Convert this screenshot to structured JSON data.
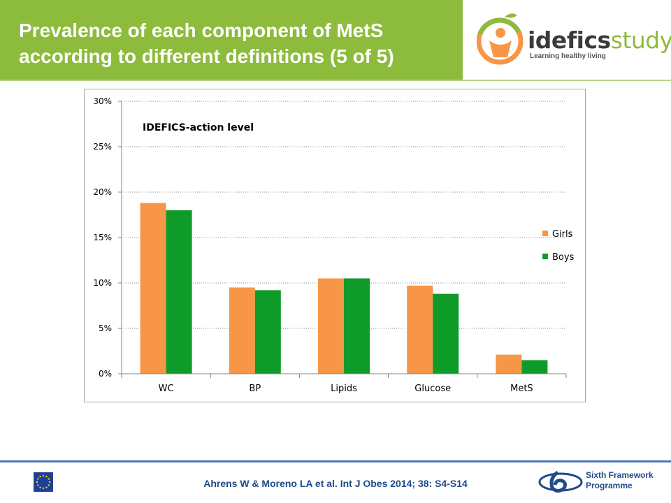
{
  "slide": {
    "title_line1": "Prevalence of each component of MetS",
    "title_line2": "according to different definitions (5 of 5)",
    "citation": "Ahrens W & Moreno LA  et al. Int J Obes 2014; 38: S4-S14"
  },
  "logo": {
    "word_bold": "idefics",
    "word_light": "study",
    "tagline": "Learning healthy living",
    "icon": "idefics-logo-icon"
  },
  "footer_logo": {
    "line1": "Sixth Framework",
    "line2": "Programme",
    "icon": "fp6-logo-icon",
    "flag": "eu-flag-icon"
  },
  "colors": {
    "header_green": "#8dbb3c",
    "girls": "#f79646",
    "boys": "#0f9b29",
    "footer_blue": "#1f4a8a"
  },
  "chart_data": {
    "type": "bar",
    "annotation": "IDEFICS-action level",
    "categories": [
      "WC",
      "BP",
      "Lipids",
      "Glucose",
      "MetS"
    ],
    "series": [
      {
        "name": "Girls",
        "values": [
          18.8,
          9.5,
          10.5,
          9.7,
          2.1
        ]
      },
      {
        "name": "Boys",
        "values": [
          18.0,
          9.2,
          10.5,
          8.8,
          1.5
        ]
      }
    ],
    "ylim": [
      0,
      30
    ],
    "yticks": [
      "0%",
      "5%",
      "10%",
      "15%",
      "20%",
      "25%",
      "30%"
    ],
    "grid": true,
    "legend_position": "right"
  }
}
